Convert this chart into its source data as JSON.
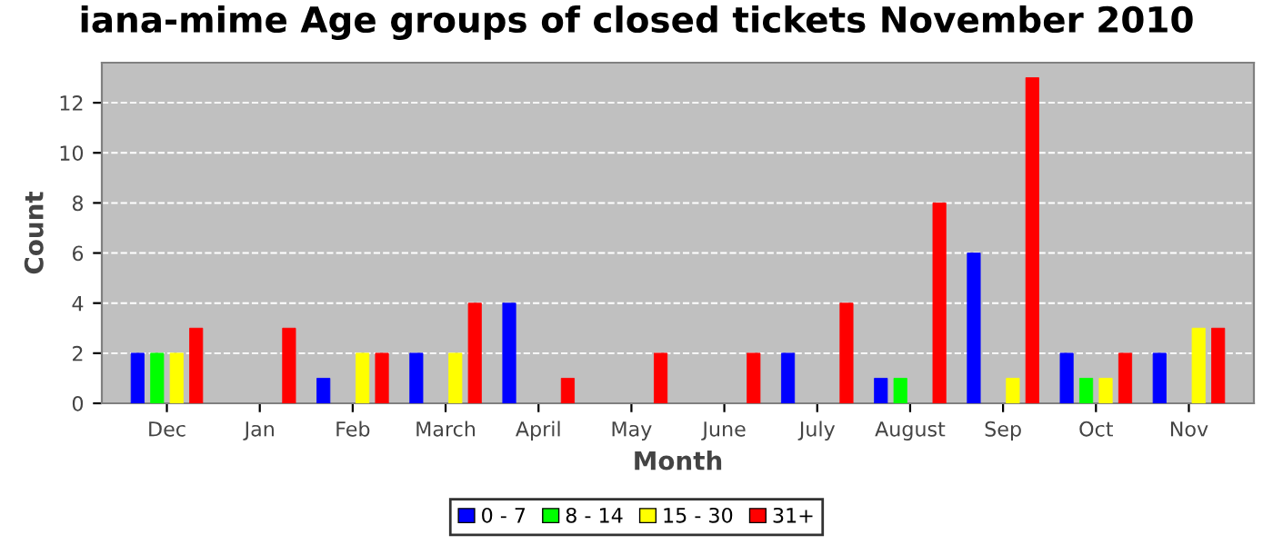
{
  "chart_data": {
    "type": "bar",
    "title": "iana-mime Age groups of closed tickets November 2010",
    "xlabel": "Month",
    "ylabel": "Count",
    "categories": [
      "Dec",
      "Jan",
      "Feb",
      "March",
      "April",
      "May",
      "June",
      "July",
      "August",
      "Sep",
      "Oct",
      "Nov"
    ],
    "series": [
      {
        "name": "0 - 7",
        "color": "#0000ff",
        "values": [
          2,
          null,
          1,
          2,
          4,
          null,
          null,
          2,
          1,
          6,
          2,
          2
        ]
      },
      {
        "name": "8 - 14",
        "color": "#00ff00",
        "values": [
          2,
          null,
          null,
          null,
          null,
          null,
          null,
          null,
          1,
          null,
          1,
          null
        ]
      },
      {
        "name": "15 - 30",
        "color": "#ffff00",
        "values": [
          2,
          null,
          2,
          2,
          null,
          null,
          null,
          null,
          null,
          1,
          1,
          3
        ]
      },
      {
        "name": "31+",
        "color": "#ff0000",
        "values": [
          3,
          3,
          2,
          4,
          1,
          2,
          2,
          4,
          8,
          13,
          2,
          3
        ]
      }
    ],
    "ylim": [
      0,
      13.6
    ],
    "yticks": [
      0,
      2,
      4,
      6,
      8,
      10,
      12
    ],
    "grid": "y",
    "legend": "bottom"
  }
}
